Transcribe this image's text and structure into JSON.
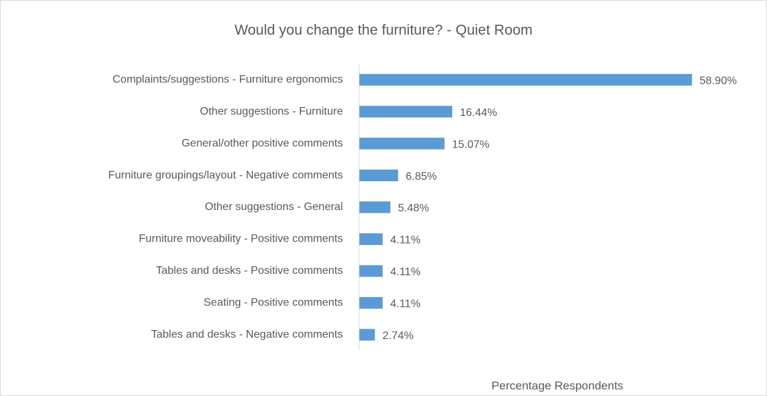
{
  "chart_data": {
    "type": "bar",
    "orientation": "horizontal",
    "title": "Would you change the furniture? - Quiet Room",
    "x_label": "Percentage Respondents",
    "categories": [
      "Complaints/suggestions - Furniture ergonomics",
      "Other suggestions - Furniture",
      "General/other positive comments",
      "Furniture groupings/layout - Negative comments",
      "Other suggestions - General",
      "Furniture moveability - Positive comments",
      "Tables and desks - Positive comments",
      "Seating - Positive comments",
      "Tables and desks - Negative comments"
    ],
    "values": [
      58.9,
      16.44,
      15.07,
      6.85,
      5.48,
      4.11,
      4.11,
      4.11,
      2.74
    ],
    "value_labels": [
      "58.90%",
      "16.44%",
      "15.07%",
      "6.85%",
      "5.48%",
      "4.11%",
      "4.11%",
      "4.11%",
      "2.74%"
    ],
    "color": "#5b9bd5",
    "xlim": [
      0,
      70
    ]
  }
}
